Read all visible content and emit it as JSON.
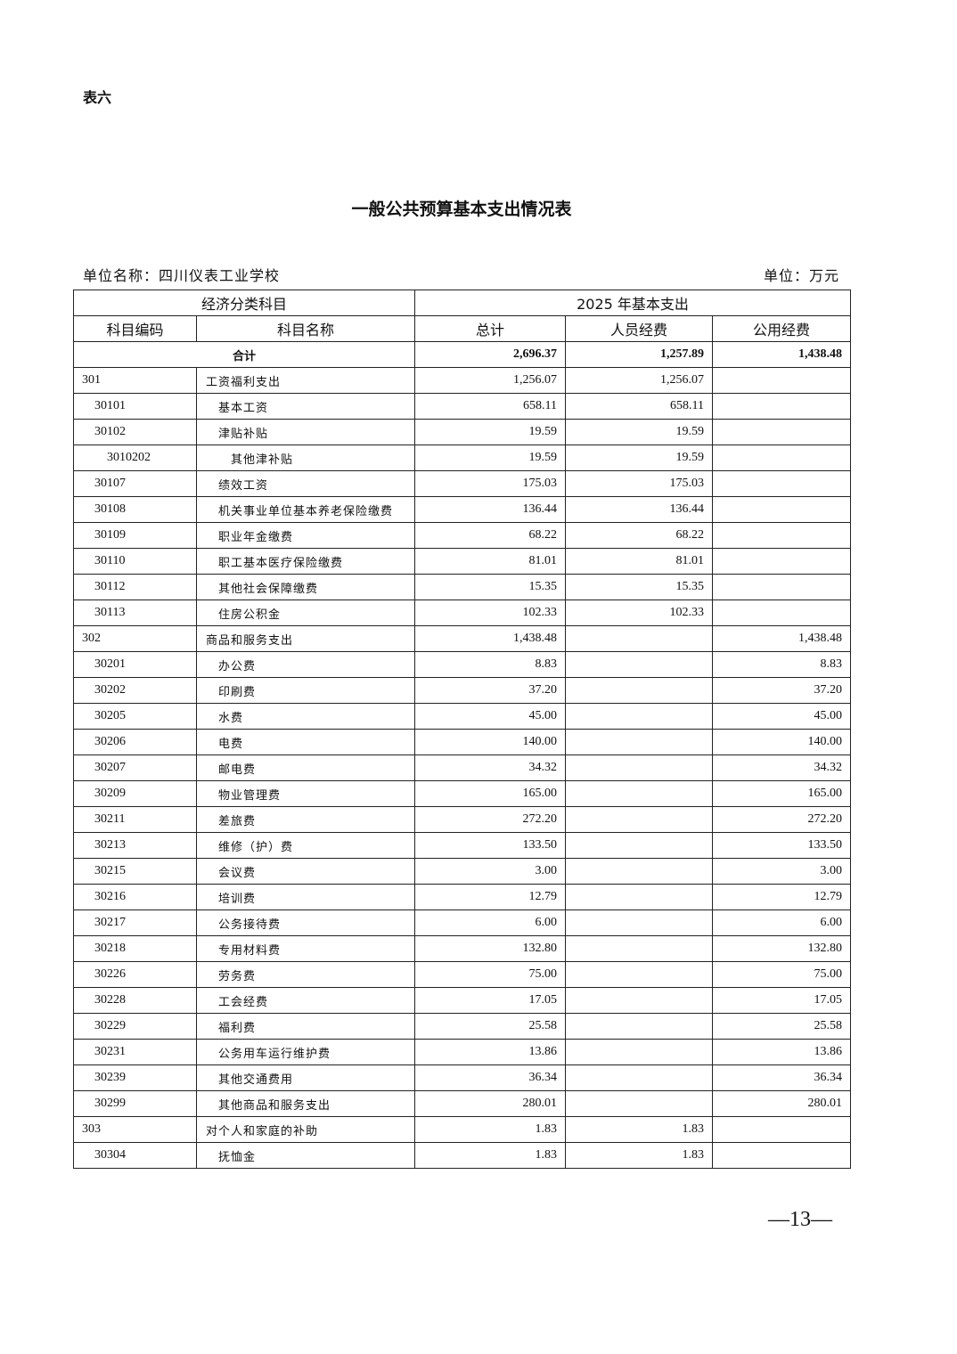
{
  "doc": {
    "tag": "表六",
    "title": "一般公共预算基本支出情况表",
    "unit_name": "单位名称：四川仪表工业学校",
    "unit": "单位：万元",
    "page_number": "—13—"
  },
  "table": {
    "group_headers": [
      "经济分类科目",
      "2025 年基本支出"
    ],
    "columns": [
      "科目编码",
      "科目名称",
      "总计",
      "人员经费",
      "公用经费"
    ],
    "total": {
      "label": "合计",
      "total": "2,696.37",
      "personnel": "1,257.89",
      "public": "1,438.48"
    },
    "rows": [
      {
        "code": "301",
        "name": "工资福利支出",
        "total": "1,256.07",
        "personnel": "1,256.07",
        "public": ""
      },
      {
        "code": "30101",
        "name": "基本工资",
        "total": "658.11",
        "personnel": "658.11",
        "public": ""
      },
      {
        "code": "30102",
        "name": "津贴补贴",
        "total": "19.59",
        "personnel": "19.59",
        "public": ""
      },
      {
        "code": "3010202",
        "name": "其他津补贴",
        "total": "19.59",
        "personnel": "19.59",
        "public": ""
      },
      {
        "code": "30107",
        "name": "绩效工资",
        "total": "175.03",
        "personnel": "175.03",
        "public": ""
      },
      {
        "code": "30108",
        "name": "机关事业单位基本养老保险缴费",
        "total": "136.44",
        "personnel": "136.44",
        "public": ""
      },
      {
        "code": "30109",
        "name": "职业年金缴费",
        "total": "68.22",
        "personnel": "68.22",
        "public": ""
      },
      {
        "code": "30110",
        "name": "职工基本医疗保险缴费",
        "total": "81.01",
        "personnel": "81.01",
        "public": ""
      },
      {
        "code": "30112",
        "name": "其他社会保障缴费",
        "total": "15.35",
        "personnel": "15.35",
        "public": ""
      },
      {
        "code": "30113",
        "name": "住房公积金",
        "total": "102.33",
        "personnel": "102.33",
        "public": ""
      },
      {
        "code": "302",
        "name": "商品和服务支出",
        "total": "1,438.48",
        "personnel": "",
        "public": "1,438.48"
      },
      {
        "code": "30201",
        "name": "办公费",
        "total": "8.83",
        "personnel": "",
        "public": "8.83"
      },
      {
        "code": "30202",
        "name": "印刷费",
        "total": "37.20",
        "personnel": "",
        "public": "37.20"
      },
      {
        "code": "30205",
        "name": "水费",
        "total": "45.00",
        "personnel": "",
        "public": "45.00"
      },
      {
        "code": "30206",
        "name": "电费",
        "total": "140.00",
        "personnel": "",
        "public": "140.00"
      },
      {
        "code": "30207",
        "name": "邮电费",
        "total": "34.32",
        "personnel": "",
        "public": "34.32"
      },
      {
        "code": "30209",
        "name": "物业管理费",
        "total": "165.00",
        "personnel": "",
        "public": "165.00"
      },
      {
        "code": "30211",
        "name": "差旅费",
        "total": "272.20",
        "personnel": "",
        "public": "272.20"
      },
      {
        "code": "30213",
        "name": "维修（护）费",
        "total": "133.50",
        "personnel": "",
        "public": "133.50"
      },
      {
        "code": "30215",
        "name": "会议费",
        "total": "3.00",
        "personnel": "",
        "public": "3.00"
      },
      {
        "code": "30216",
        "name": "培训费",
        "total": "12.79",
        "personnel": "",
        "public": "12.79"
      },
      {
        "code": "30217",
        "name": "公务接待费",
        "total": "6.00",
        "personnel": "",
        "public": "6.00"
      },
      {
        "code": "30218",
        "name": "专用材料费",
        "total": "132.80",
        "personnel": "",
        "public": "132.80"
      },
      {
        "code": "30226",
        "name": "劳务费",
        "total": "75.00",
        "personnel": "",
        "public": "75.00"
      },
      {
        "code": "30228",
        "name": "工会经费",
        "total": "17.05",
        "personnel": "",
        "public": "17.05"
      },
      {
        "code": "30229",
        "name": "福利费",
        "total": "25.58",
        "personnel": "",
        "public": "25.58"
      },
      {
        "code": "30231",
        "name": "公务用车运行维护费",
        "total": "13.86",
        "personnel": "",
        "public": "13.86"
      },
      {
        "code": "30239",
        "name": "其他交通费用",
        "total": "36.34",
        "personnel": "",
        "public": "36.34"
      },
      {
        "code": "30299",
        "name": "其他商品和服务支出",
        "total": "280.01",
        "personnel": "",
        "public": "280.01"
      },
      {
        "code": "303",
        "name": "对个人和家庭的补助",
        "total": "1.83",
        "personnel": "1.83",
        "public": ""
      },
      {
        "code": "30304",
        "name": "抚恤金",
        "total": "1.83",
        "personnel": "1.83",
        "public": ""
      }
    ]
  }
}
